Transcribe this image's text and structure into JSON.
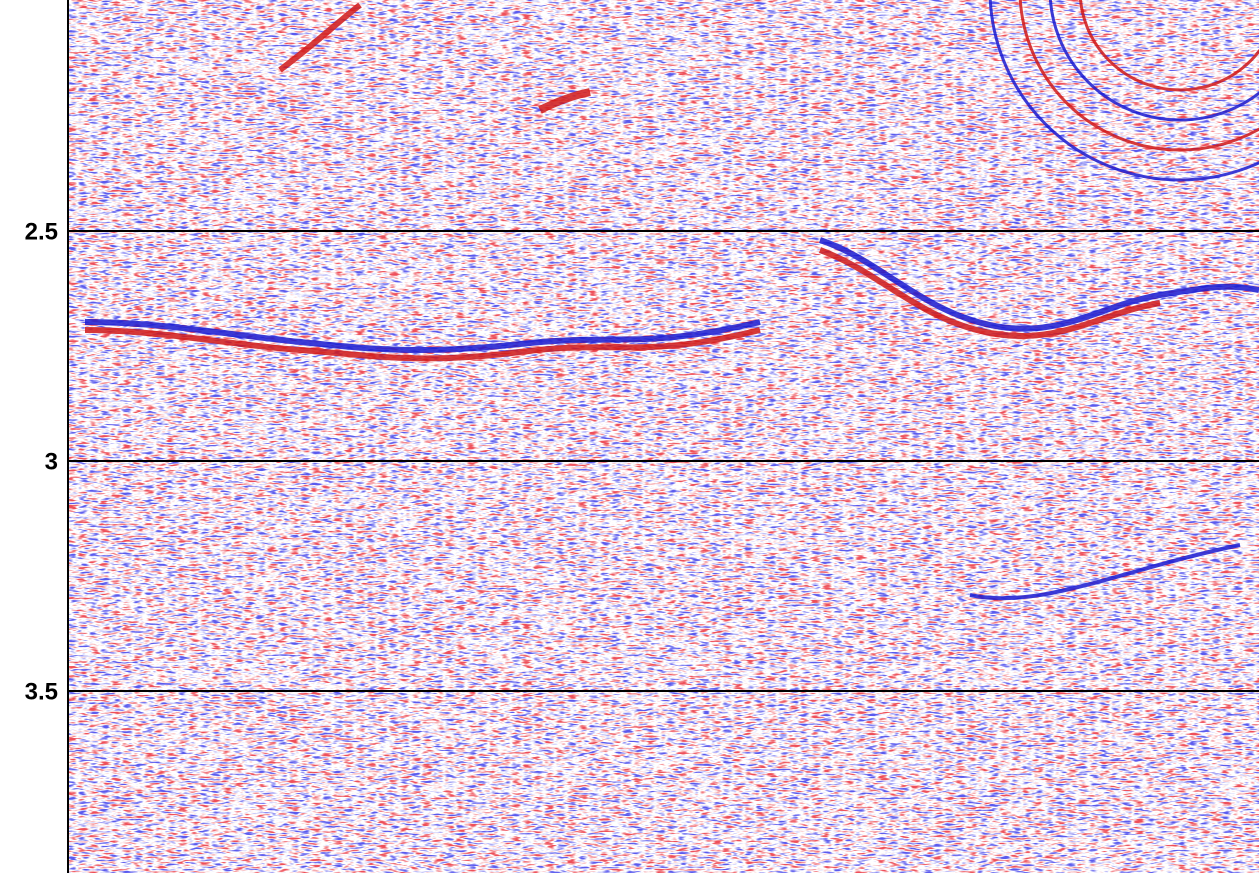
{
  "chart_data": {
    "type": "image",
    "ylim": [
      2.0,
      3.895
    ],
    "yticks": [
      2.5,
      3,
      3.5
    ],
    "grid": true
  }
}
